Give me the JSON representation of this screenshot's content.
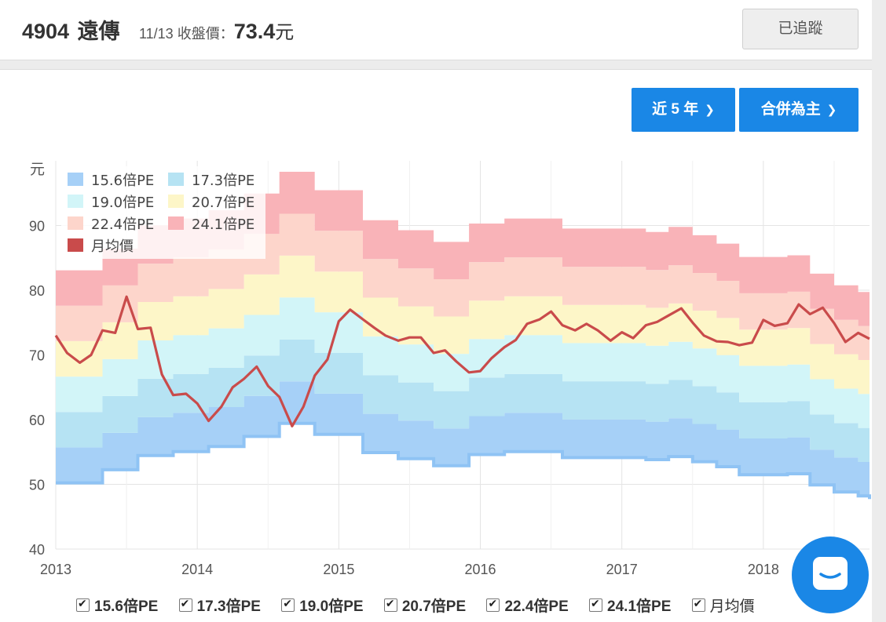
{
  "header": {
    "stock_code": "4904",
    "stock_name": "遠傳",
    "close_label": "11/13 收盤價：",
    "close_price": "73.4",
    "close_unit": "元",
    "track_button": "已追蹤"
  },
  "controls": {
    "range_label": "近 5 年",
    "basis_label": "合併為主"
  },
  "colors": {
    "band_15_6": "#a6d0f7",
    "band_17_3": "#b6e3f3",
    "band_19_0": "#d2f5f8",
    "band_20_7": "#fdf6c8",
    "band_22_4": "#fdd5cb",
    "band_24_1": "#f9b3b8",
    "price_line": "#c94b4b",
    "accent": "#1a87e6"
  },
  "chart_data": {
    "type": "area",
    "ylabel": "元",
    "ylim": [
      40,
      100
    ],
    "yticks": [
      40,
      50,
      60,
      70,
      80,
      90
    ],
    "xlim": [
      2013,
      2018.75
    ],
    "xticks": [
      "2013",
      "2014",
      "2015",
      "2016",
      "2017",
      "2018"
    ],
    "grid": true,
    "legend_position": "top-left",
    "legend": [
      "15.6倍PE",
      "17.3倍PE",
      "19.0倍PE",
      "20.7倍PE",
      "22.4倍PE",
      "24.1倍PE",
      "月均價"
    ],
    "pe_multiples": [
      15.6,
      17.3,
      19.0,
      20.7,
      22.4,
      24.1
    ],
    "eps_steps": [
      {
        "from": 2013.0,
        "eps": 3.22
      },
      {
        "from": 2013.33,
        "eps": 3.35
      },
      {
        "from": 2013.58,
        "eps": 3.49
      },
      {
        "from": 2013.83,
        "eps": 3.53
      },
      {
        "from": 2014.08,
        "eps": 3.58
      },
      {
        "from": 2014.33,
        "eps": 3.68
      },
      {
        "from": 2014.58,
        "eps": 3.81
      },
      {
        "from": 2014.83,
        "eps": 3.7
      },
      {
        "from": 2015.17,
        "eps": 3.52
      },
      {
        "from": 2015.42,
        "eps": 3.46
      },
      {
        "from": 2015.67,
        "eps": 3.39
      },
      {
        "from": 2015.92,
        "eps": 3.5
      },
      {
        "from": 2016.17,
        "eps": 3.53
      },
      {
        "from": 2016.58,
        "eps": 3.47
      },
      {
        "from": 2017.17,
        "eps": 3.45
      },
      {
        "from": 2017.33,
        "eps": 3.48
      },
      {
        "from": 2017.5,
        "eps": 3.43
      },
      {
        "from": 2017.67,
        "eps": 3.38
      },
      {
        "from": 2017.83,
        "eps": 3.3
      },
      {
        "from": 2018.17,
        "eps": 3.31
      },
      {
        "from": 2018.33,
        "eps": 3.2
      },
      {
        "from": 2018.5,
        "eps": 3.13
      },
      {
        "from": 2018.67,
        "eps": 3.09
      },
      {
        "from": 2018.75,
        "eps": 3.06
      }
    ],
    "series": [
      {
        "name": "月均價",
        "x": [
          2013.0,
          2013.08,
          2013.17,
          2013.25,
          2013.33,
          2013.42,
          2013.5,
          2013.58,
          2013.67,
          2013.75,
          2013.83,
          2013.92,
          2014.0,
          2014.08,
          2014.17,
          2014.25,
          2014.33,
          2014.42,
          2014.5,
          2014.58,
          2014.67,
          2014.75,
          2014.83,
          2014.92,
          2015.0,
          2015.08,
          2015.17,
          2015.25,
          2015.33,
          2015.42,
          2015.5,
          2015.58,
          2015.67,
          2015.75,
          2015.83,
          2015.92,
          2016.0,
          2016.08,
          2016.17,
          2016.25,
          2016.33,
          2016.42,
          2016.5,
          2016.58,
          2016.67,
          2016.75,
          2016.83,
          2016.92,
          2017.0,
          2017.08,
          2017.17,
          2017.25,
          2017.33,
          2017.42,
          2017.5,
          2017.58,
          2017.67,
          2017.75,
          2017.83,
          2017.92,
          2018.0,
          2018.08,
          2018.17,
          2018.25,
          2018.33,
          2018.42,
          2018.5,
          2018.58,
          2018.67,
          2018.75
        ],
        "values": [
          73.0,
          70.3,
          68.8,
          70.0,
          73.8,
          73.4,
          79.0,
          74.0,
          74.2,
          67.0,
          63.8,
          64.0,
          62.5,
          59.8,
          62.0,
          65.0,
          66.3,
          68.2,
          65.2,
          63.5,
          59.0,
          62.0,
          66.8,
          69.3,
          75.2,
          77.0,
          75.5,
          74.2,
          73.0,
          72.2,
          72.7,
          72.7,
          70.3,
          70.7,
          69.0,
          67.3,
          67.5,
          69.5,
          71.2,
          72.3,
          74.8,
          75.5,
          76.7,
          74.6,
          73.8,
          74.8,
          73.8,
          72.2,
          73.5,
          72.6,
          74.6,
          75.1,
          76.1,
          77.2,
          75.0,
          73.0,
          72.1,
          72.0,
          71.5,
          71.9,
          75.4,
          74.5,
          74.9,
          77.8,
          76.3,
          77.3,
          74.9,
          72.0,
          73.4,
          72.5
        ]
      }
    ]
  }
}
